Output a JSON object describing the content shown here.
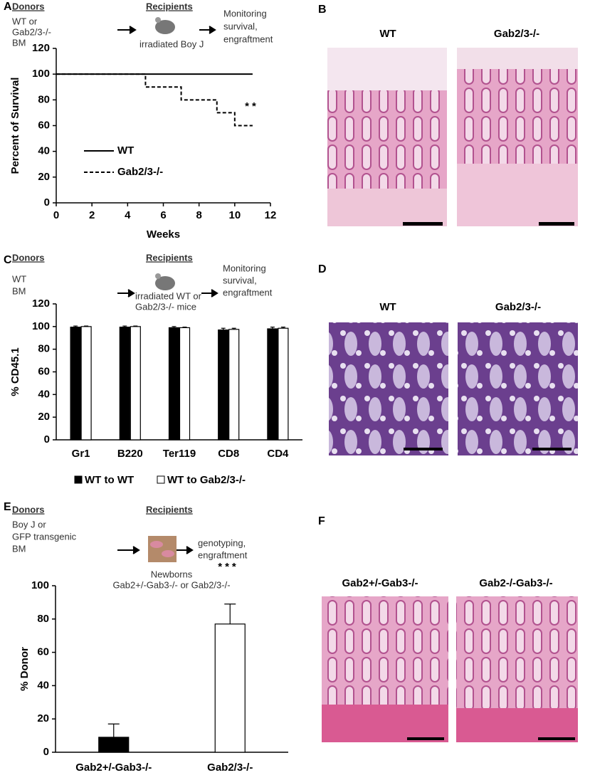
{
  "panel_labels": [
    "A",
    "B",
    "C",
    "D",
    "E",
    "F"
  ],
  "schematics": [
    {
      "donors": "Donors",
      "donor_lines": [
        "WT or",
        "Gab2/3-/-",
        "BM"
      ],
      "recipients": "Recipients",
      "recipient_lines": [
        "irradiated Boy J"
      ],
      "outcome_lines": [
        "Monitoring",
        "survival,",
        "engraftment"
      ]
    },
    {
      "donors": "Donors",
      "donor_lines": [
        "WT",
        "BM"
      ],
      "recipients": "Recipients",
      "recipient_lines": [
        "irradiated WT or",
        "Gab2/3-/- mice"
      ],
      "outcome_lines": [
        "Monitoring",
        "survival,",
        "engraftment"
      ]
    },
    {
      "donors": "Donors",
      "donor_lines": [
        "Boy J or",
        "GFP transgenic",
        "BM"
      ],
      "recipients": "Recipients",
      "recipient_lines": [
        "Newborns",
        "Gab2+/-Gab3-/- or Gab2/3-/-"
      ],
      "outcome_lines": [
        "genotyping,",
        "engraftment"
      ]
    }
  ],
  "micrographs": [
    {
      "labels": [
        "WT",
        "Gab2/3-/-"
      ]
    },
    {
      "labels": [
        "WT",
        "Gab2/3-/-"
      ]
    },
    {
      "labels": [
        "Gab2+/-Gab3-/-",
        "Gab2-/-Gab3-/-"
      ]
    }
  ],
  "chart_data": [
    {
      "type": "line",
      "xlabel": "Weeks",
      "ylabel": "Percent of Survival",
      "series": [
        {
          "name": "WT",
          "color": "#000000",
          "dash": false,
          "x": [
            0,
            11
          ],
          "values": [
            100,
            100
          ]
        },
        {
          "name": "Gab2/3-/-",
          "color": "#000000",
          "dash": true,
          "x": [
            0,
            5,
            5,
            7,
            7,
            9,
            9,
            10,
            10,
            11
          ],
          "values": [
            100,
            100,
            90,
            90,
            80,
            80,
            70,
            70,
            60,
            60
          ]
        }
      ],
      "xlim": [
        0,
        12
      ],
      "xticks": [
        0,
        2,
        4,
        6,
        8,
        10,
        12
      ],
      "ylim": [
        0,
        120
      ],
      "yticks": [
        0,
        20,
        40,
        60,
        80,
        100,
        120
      ],
      "legend": "lower left",
      "annotations": [
        "**"
      ]
    },
    {
      "type": "bar",
      "ylabel": "% CD45.1",
      "categories": [
        "Gr1",
        "B220",
        "Ter119",
        "CD8",
        "CD4"
      ],
      "series": [
        {
          "name": "WT to WT",
          "color": "#000000",
          "values": [
            99.5,
            99.5,
            99,
            97,
            98
          ],
          "errors": [
            1,
            1,
            1,
            1.5,
            1.5
          ]
        },
        {
          "name": "WT to Gab2/3-/-",
          "color": "#ffffff",
          "values": [
            100,
            100,
            99,
            97.5,
            98.5
          ],
          "errors": [
            0.5,
            0.5,
            0.5,
            1,
            1
          ]
        }
      ],
      "ylim": [
        0,
        120
      ],
      "yticks": [
        0,
        20,
        40,
        60,
        80,
        100,
        120
      ],
      "legend": "bottom"
    },
    {
      "type": "bar",
      "ylabel": "% Donor",
      "categories": [
        "Gab2+/-Gab3-/-",
        "Gab2/3-/-"
      ],
      "values": [
        9,
        77
      ],
      "errors": [
        8,
        12
      ],
      "colors": [
        "#000000",
        "#ffffff"
      ],
      "ylim": [
        0,
        100
      ],
      "yticks": [
        0,
        20,
        40,
        60,
        80,
        100
      ],
      "annotations": [
        "***"
      ]
    }
  ]
}
